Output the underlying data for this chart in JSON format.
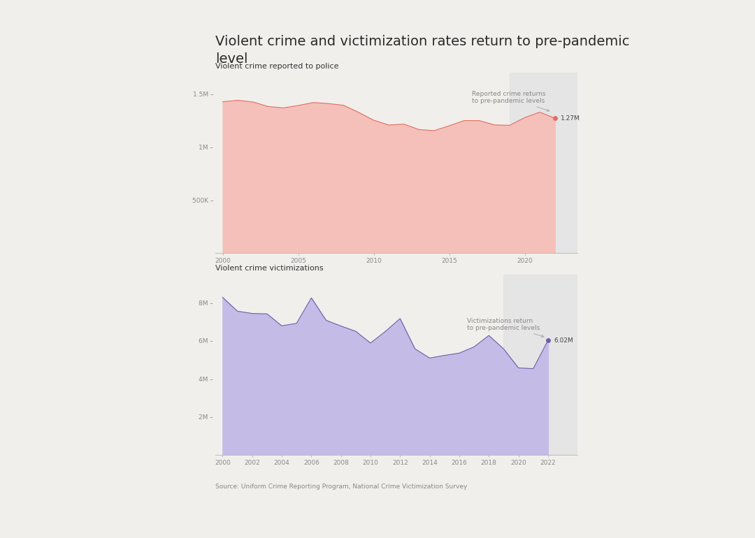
{
  "title": "Violent crime and victimization rates return to pre-pandemic\nlevel",
  "title_fontsize": 14,
  "background_color": "#f0efec",
  "chart1": {
    "subtitle": "Violent crime reported to police",
    "years": [
      2000,
      2001,
      2002,
      2003,
      2004,
      2005,
      2006,
      2007,
      2008,
      2009,
      2010,
      2011,
      2012,
      2013,
      2014,
      2015,
      2016,
      2017,
      2018,
      2019,
      2020,
      2021,
      2022
    ],
    "values": [
      1425000,
      1439000,
      1423000,
      1381000,
      1367000,
      1390000,
      1418000,
      1408000,
      1392000,
      1325000,
      1251000,
      1206000,
      1214000,
      1163000,
      1153000,
      1199000,
      1248000,
      1247000,
      1207000,
      1203000,
      1276000,
      1327000,
      1270000
    ],
    "fill_color": "#f5c0ba",
    "line_color": "#e07060",
    "annotation_text": "Reported crime returns\nto pre-pandemic levels",
    "endpoint_label": "1.27M",
    "endpoint_value": 1270000,
    "endpoint_year": 2022,
    "shade_start": 2019,
    "yticks": [
      500000,
      1000000,
      1500000
    ],
    "ytick_labels": [
      "500K –",
      "1M –",
      "1.5M –"
    ],
    "ylim": [
      0,
      1700000
    ],
    "xlim": [
      1999.5,
      2023.5
    ]
  },
  "chart2": {
    "subtitle": "Violent crime victimizations",
    "years": [
      2000,
      2001,
      2002,
      2003,
      2004,
      2005,
      2006,
      2007,
      2008,
      2009,
      2010,
      2011,
      2012,
      2013,
      2014,
      2015,
      2016,
      2017,
      2018,
      2019,
      2020,
      2021,
      2022
    ],
    "values": [
      8290000,
      7560000,
      7440000,
      7420000,
      6790000,
      6920000,
      8260000,
      7080000,
      6780000,
      6500000,
      5880000,
      6490000,
      7170000,
      5580000,
      5090000,
      5230000,
      5350000,
      5680000,
      6280000,
      5570000,
      4570000,
      4530000,
      6020000
    ],
    "fill_color": "#c4bce6",
    "line_color": "#7060a8",
    "annotation_text": "Victimizations return\nto pre-pandemic levels",
    "endpoint_label": "6.02M",
    "endpoint_value": 6020000,
    "endpoint_year": 2022,
    "shade_start": 2019,
    "yticks": [
      2000000,
      4000000,
      6000000,
      8000000
    ],
    "ytick_labels": [
      "2M –",
      "4M –",
      "6M –",
      "8M –"
    ],
    "ylim": [
      0,
      9500000
    ],
    "xlim": [
      1999.5,
      2024.0
    ]
  },
  "source_text": "Source: Uniform Crime Reporting Program, National Crime Victimization Survey"
}
